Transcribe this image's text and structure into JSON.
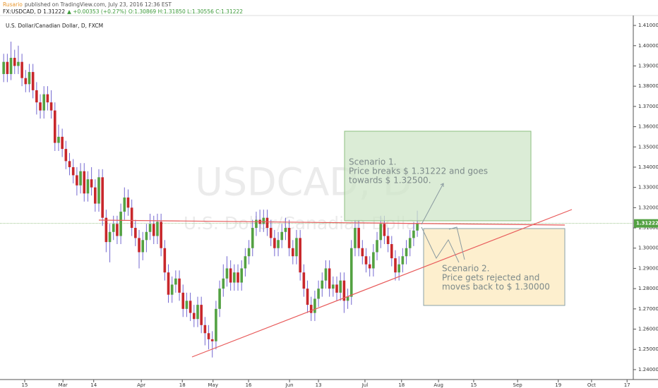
{
  "chart_data": {
    "type": "candlestick",
    "header": {
      "author": "Rusario",
      "published": "published on TradingView.com, July 23, 2016 12:36 EST",
      "symbol": "FX:USDCAD, D 1.31222",
      "change": "▲ +0.00353 (+0.27%)",
      "ohlc": "O:1.30869 H:1.31850 L:1.30556 C:1.31222"
    },
    "title": "U.S. Dollar/Canadian Dollar, D, FXCM",
    "watermark": "USDCAD, D",
    "watermark_subtitle": "U.S. Dollar/Canadian Dollar",
    "annotations": [
      {
        "lines": [
          "Scenario 1.",
          "Price breaks $ 1.31222 and goes",
          "towards $ 1.32500."
        ]
      },
      {
        "lines": [
          "Scenario 2.",
          "Price gets rejected and",
          "moves back to $ 1.30000"
        ]
      }
    ],
    "up_color": "#53a142",
    "down_color": "#c8272b",
    "wick_color": "#7468d0",
    "price_line_color": "#9bc48b",
    "grid": false,
    "xlim": [
      -1,
      172
    ],
    "ylim": [
      1.2351,
      1.4149
    ],
    "xticks": [
      {
        "value": 5.75,
        "label": "15"
      },
      {
        "value": 16.2,
        "label": "Mar"
      },
      {
        "value": 24.6,
        "label": "14"
      },
      {
        "value": 37.6,
        "label": "Apr"
      },
      {
        "value": 48.8,
        "label": "18"
      },
      {
        "value": 57.2,
        "label": "May"
      },
      {
        "value": 66.9,
        "label": "16"
      },
      {
        "value": 78.1,
        "label": "Jun"
      },
      {
        "value": 86,
        "label": "13"
      },
      {
        "value": 98.7,
        "label": "Jul"
      },
      {
        "value": 108.7,
        "label": "18"
      },
      {
        "value": 118.8,
        "label": "Aug"
      },
      {
        "value": 128.4,
        "label": "15"
      },
      {
        "value": 140.4,
        "label": "Sep"
      },
      {
        "value": 151.5,
        "label": "19"
      },
      {
        "value": 160.6,
        "label": "Oct"
      },
      {
        "value": 170.3,
        "label": "17"
      }
    ],
    "yticks": [
      {
        "value": 1.24,
        "label": "1.24000"
      },
      {
        "value": 1.25,
        "label": "1.25000"
      },
      {
        "value": 1.26,
        "label": "1.26000"
      },
      {
        "value": 1.27,
        "label": "1.27000"
      },
      {
        "value": 1.28,
        "label": "1.28000"
      },
      {
        "value": 1.29,
        "label": "1.29000"
      },
      {
        "value": 1.3,
        "label": "1.30000"
      },
      {
        "value": 1.31,
        "label": "1.31000"
      },
      {
        "value": 1.32,
        "label": "1.32000"
      },
      {
        "value": 1.33,
        "label": "1.33000"
      },
      {
        "value": 1.34,
        "label": "1.34000"
      },
      {
        "value": 1.35,
        "label": "1.35000"
      },
      {
        "value": 1.36,
        "label": "1.36000"
      },
      {
        "value": 1.37,
        "label": "1.37000"
      },
      {
        "value": 1.38,
        "label": "1.38000"
      },
      {
        "value": 1.39,
        "label": "1.39000"
      },
      {
        "value": 1.4,
        "label": "1.40000"
      },
      {
        "value": 1.41,
        "label": "1.41000"
      }
    ],
    "open": [
      1.386,
      1.392,
      1.386,
      1.394,
      1.39,
      1.392,
      1.384,
      1.381,
      1.387,
      1.378,
      1.372,
      1.368,
      1.376,
      1.372,
      1.368,
      1.352,
      1.355,
      1.349,
      1.343,
      1.34,
      1.336,
      1.331,
      1.338,
      1.327,
      1.334,
      1.33,
      1.322,
      1.335,
      1.315,
      1.303,
      1.308,
      1.312,
      1.306,
      1.318,
      1.325,
      1.32,
      1.31,
      1.305,
      1.298,
      1.304,
      1.308,
      1.312,
      1.306,
      1.313,
      1.3,
      1.288,
      1.277,
      1.282,
      1.285,
      1.278,
      1.27,
      1.274,
      1.268,
      1.265,
      1.272,
      1.262,
      1.258,
      1.255,
      1.254,
      1.27,
      1.28,
      1.285,
      1.29,
      1.283,
      1.288,
      1.283,
      1.29,
      1.296,
      1.3,
      1.31,
      1.314,
      1.312,
      1.315,
      1.31,
      1.305,
      1.3,
      1.304,
      1.308,
      1.31,
      1.3,
      1.296,
      1.305,
      1.288,
      1.28,
      1.272,
      1.268,
      1.275,
      1.28,
      1.284,
      1.29,
      1.28,
      1.282,
      1.278,
      1.284,
      1.274,
      1.276,
      1.3,
      1.31,
      1.3,
      1.296,
      1.292,
      1.29,
      1.298,
      1.304,
      1.312,
      1.306,
      1.302,
      1.295,
      1.288,
      1.292,
      1.296,
      1.3,
      1.305,
      1.30869
    ],
    "high": [
      1.396,
      1.396,
      1.402,
      1.398,
      1.4,
      1.396,
      1.388,
      1.391,
      1.391,
      1.382,
      1.376,
      1.38,
      1.38,
      1.378,
      1.372,
      1.361,
      1.359,
      1.353,
      1.347,
      1.344,
      1.34,
      1.342,
      1.342,
      1.338,
      1.34,
      1.334,
      1.339,
      1.339,
      1.319,
      1.312,
      1.316,
      1.316,
      1.322,
      1.33,
      1.329,
      1.324,
      1.314,
      1.309,
      1.308,
      1.312,
      1.317,
      1.316,
      1.317,
      1.317,
      1.304,
      1.292,
      1.286,
      1.289,
      1.289,
      1.282,
      1.278,
      1.278,
      1.272,
      1.276,
      1.276,
      1.266,
      1.262,
      1.259,
      1.274,
      1.284,
      1.292,
      1.296,
      1.294,
      1.292,
      1.292,
      1.294,
      1.3,
      1.304,
      1.314,
      1.318,
      1.319,
      1.319,
      1.319,
      1.314,
      1.309,
      1.308,
      1.312,
      1.315,
      1.314,
      1.304,
      1.309,
      1.309,
      1.292,
      1.284,
      1.276,
      1.279,
      1.284,
      1.288,
      1.294,
      1.294,
      1.286,
      1.286,
      1.288,
      1.288,
      1.28,
      1.304,
      1.314,
      1.314,
      1.304,
      1.3,
      1.296,
      1.302,
      1.308,
      1.316,
      1.316,
      1.31,
      1.306,
      1.299,
      1.296,
      1.3,
      1.304,
      1.309,
      1.3127,
      1.3185
    ],
    "low": [
      1.382,
      1.382,
      1.383,
      1.386,
      1.386,
      1.38,
      1.377,
      1.377,
      1.374,
      1.366,
      1.364,
      1.364,
      1.368,
      1.364,
      1.348,
      1.348,
      1.345,
      1.339,
      1.336,
      1.332,
      1.326,
      1.327,
      1.323,
      1.323,
      1.326,
      1.318,
      1.318,
      1.311,
      1.298,
      1.293,
      1.304,
      1.302,
      1.302,
      1.314,
      1.316,
      1.306,
      1.301,
      1.29,
      1.294,
      1.298,
      1.304,
      1.302,
      1.302,
      1.296,
      1.284,
      1.273,
      1.273,
      1.278,
      1.274,
      1.266,
      1.266,
      1.264,
      1.261,
      1.261,
      1.258,
      1.252,
      1.25,
      1.246,
      1.25,
      1.266,
      1.276,
      1.281,
      1.279,
      1.279,
      1.279,
      1.279,
      1.286,
      1.292,
      1.296,
      1.306,
      1.308,
      1.308,
      1.306,
      1.301,
      1.296,
      1.296,
      1.3,
      1.304,
      1.296,
      1.292,
      1.292,
      1.284,
      1.276,
      1.268,
      1.264,
      1.264,
      1.271,
      1.276,
      1.28,
      1.276,
      1.276,
      1.274,
      1.274,
      1.268,
      1.27,
      1.272,
      1.296,
      1.296,
      1.292,
      1.288,
      1.286,
      1.286,
      1.294,
      1.3,
      1.302,
      1.298,
      1.291,
      1.284,
      1.284,
      1.288,
      1.292,
      1.296,
      1.301,
      1.30556
    ],
    "close": [
      1.392,
      1.386,
      1.394,
      1.39,
      1.392,
      1.384,
      1.381,
      1.387,
      1.378,
      1.372,
      1.368,
      1.376,
      1.372,
      1.368,
      1.352,
      1.355,
      1.349,
      1.343,
      1.34,
      1.336,
      1.331,
      1.338,
      1.327,
      1.334,
      1.33,
      1.322,
      1.335,
      1.315,
      1.303,
      1.308,
      1.312,
      1.306,
      1.318,
      1.325,
      1.32,
      1.31,
      1.305,
      1.298,
      1.304,
      1.308,
      1.312,
      1.306,
      1.313,
      1.3,
      1.288,
      1.277,
      1.282,
      1.285,
      1.278,
      1.27,
      1.274,
      1.268,
      1.265,
      1.272,
      1.262,
      1.258,
      1.255,
      1.254,
      1.27,
      1.28,
      1.285,
      1.29,
      1.283,
      1.288,
      1.283,
      1.29,
      1.296,
      1.3,
      1.31,
      1.314,
      1.312,
      1.315,
      1.31,
      1.305,
      1.3,
      1.304,
      1.308,
      1.31,
      1.3,
      1.296,
      1.305,
      1.288,
      1.28,
      1.272,
      1.268,
      1.275,
      1.28,
      1.284,
      1.29,
      1.28,
      1.282,
      1.278,
      1.284,
      1.274,
      1.276,
      1.3,
      1.31,
      1.3,
      1.296,
      1.292,
      1.29,
      1.298,
      1.304,
      1.312,
      1.306,
      1.302,
      1.295,
      1.288,
      1.292,
      1.296,
      1.3,
      1.305,
      1.30869,
      1.31222
    ]
  }
}
